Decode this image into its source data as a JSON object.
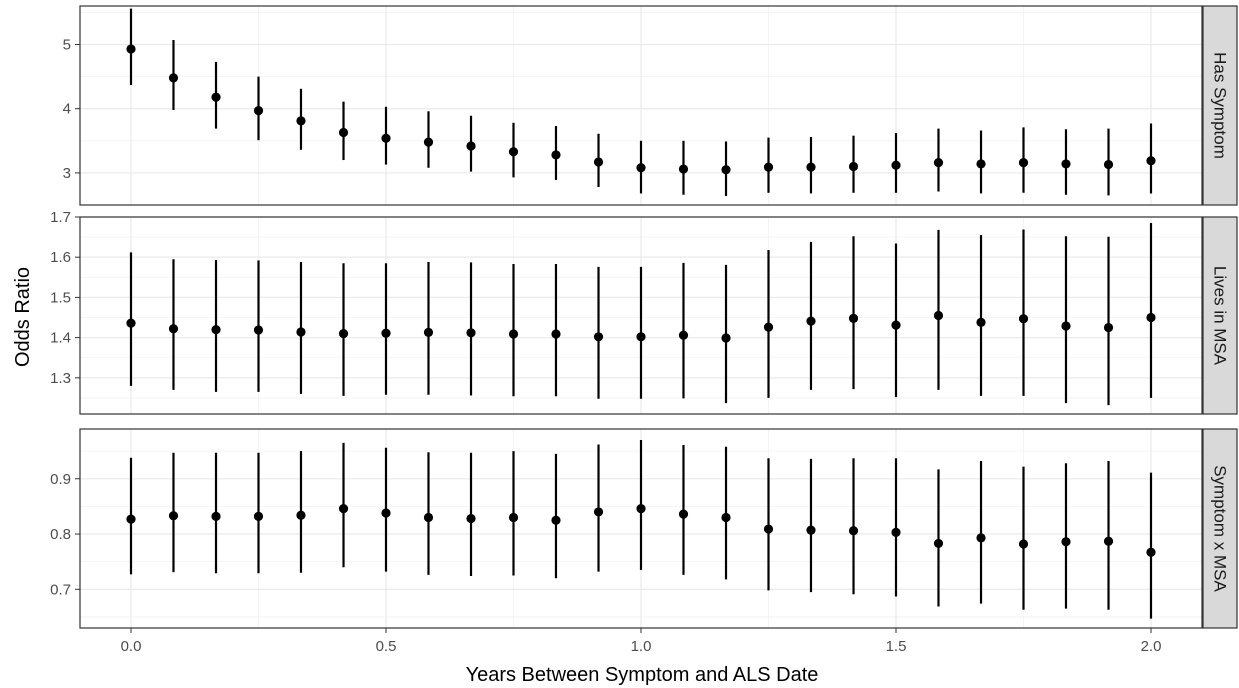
{
  "chart_data": {
    "type": "scatter",
    "subtype": "point-range faceted",
    "xlabel": "Years Between Symptom and ALS Date",
    "ylabel": "Odds Ratio",
    "xlim": [
      -0.1,
      2.1
    ],
    "x_ticks": [
      0.0,
      0.5,
      1.0,
      1.5,
      2.0
    ],
    "x_tick_labels": [
      "0.0",
      "0.5",
      "1.0",
      "1.5",
      "2.0"
    ],
    "x": [
      0,
      0.0833,
      0.1667,
      0.25,
      0.3333,
      0.4167,
      0.5,
      0.5833,
      0.6667,
      0.75,
      0.8333,
      0.9167,
      1.0,
      1.0833,
      1.1667,
      1.25,
      1.3333,
      1.4167,
      1.5,
      1.5833,
      1.6667,
      1.75,
      1.8333,
      1.9167,
      2.0
    ],
    "grid": true,
    "panels": [
      {
        "strip_label": "Has Symptom",
        "ylim": [
          2.5,
          5.6
        ],
        "y_ticks": [
          3,
          4,
          5
        ],
        "y_tick_labels": [
          "3",
          "4",
          "5"
        ],
        "estimate": [
          4.93,
          4.48,
          4.18,
          3.97,
          3.81,
          3.63,
          3.54,
          3.48,
          3.42,
          3.33,
          3.28,
          3.17,
          3.08,
          3.06,
          3.05,
          3.09,
          3.09,
          3.1,
          3.12,
          3.16,
          3.14,
          3.16,
          3.14,
          3.13,
          3.19
        ],
        "lower": [
          4.37,
          3.98,
          3.69,
          3.51,
          3.36,
          3.2,
          3.13,
          3.08,
          3.02,
          2.93,
          2.89,
          2.78,
          2.68,
          2.66,
          2.64,
          2.69,
          2.68,
          2.69,
          2.69,
          2.71,
          2.68,
          2.69,
          2.66,
          2.65,
          2.68
        ],
        "upper": [
          5.56,
          5.07,
          4.73,
          4.5,
          4.31,
          4.11,
          4.03,
          3.96,
          3.89,
          3.78,
          3.73,
          3.61,
          3.5,
          3.5,
          3.49,
          3.55,
          3.56,
          3.58,
          3.62,
          3.69,
          3.66,
          3.71,
          3.68,
          3.69,
          3.77
        ]
      },
      {
        "strip_label": "Lives in MSA",
        "ylim": [
          1.21,
          1.7
        ],
        "y_ticks": [
          1.3,
          1.4,
          1.5,
          1.6,
          1.7
        ],
        "y_tick_labels": [
          "1.3",
          "1.4",
          "1.5",
          "1.6",
          "1.7"
        ],
        "estimate": [
          1.436,
          1.422,
          1.42,
          1.419,
          1.414,
          1.41,
          1.411,
          1.413,
          1.412,
          1.409,
          1.409,
          1.402,
          1.402,
          1.406,
          1.399,
          1.426,
          1.441,
          1.448,
          1.431,
          1.455,
          1.438,
          1.447,
          1.429,
          1.425,
          1.45
        ],
        "lower": [
          1.28,
          1.27,
          1.265,
          1.265,
          1.26,
          1.255,
          1.258,
          1.258,
          1.256,
          1.254,
          1.254,
          1.248,
          1.248,
          1.249,
          1.237,
          1.25,
          1.27,
          1.272,
          1.252,
          1.27,
          1.255,
          1.255,
          1.237,
          1.232,
          1.25
        ],
        "upper": [
          1.612,
          1.595,
          1.593,
          1.592,
          1.588,
          1.585,
          1.585,
          1.588,
          1.587,
          1.583,
          1.583,
          1.576,
          1.576,
          1.586,
          1.581,
          1.618,
          1.638,
          1.652,
          1.634,
          1.668,
          1.655,
          1.669,
          1.652,
          1.651,
          1.685
        ]
      },
      {
        "strip_label": "Symptom x MSA",
        "ylim": [
          0.63,
          0.99
        ],
        "y_ticks": [
          0.7,
          0.8,
          0.9
        ],
        "y_tick_labels": [
          "0.7",
          "0.8",
          "0.9"
        ],
        "estimate": [
          0.827,
          0.833,
          0.832,
          0.832,
          0.834,
          0.846,
          0.838,
          0.83,
          0.828,
          0.83,
          0.825,
          0.84,
          0.846,
          0.836,
          0.83,
          0.809,
          0.807,
          0.806,
          0.803,
          0.783,
          0.793,
          0.782,
          0.786,
          0.787,
          0.767
        ],
        "lower": [
          0.727,
          0.731,
          0.729,
          0.729,
          0.73,
          0.74,
          0.732,
          0.726,
          0.724,
          0.725,
          0.72,
          0.732,
          0.735,
          0.726,
          0.718,
          0.698,
          0.695,
          0.691,
          0.687,
          0.669,
          0.674,
          0.663,
          0.665,
          0.663,
          0.647
        ],
        "upper": [
          0.938,
          0.947,
          0.947,
          0.947,
          0.95,
          0.965,
          0.956,
          0.948,
          0.947,
          0.95,
          0.945,
          0.962,
          0.97,
          0.961,
          0.958,
          0.937,
          0.936,
          0.937,
          0.937,
          0.917,
          0.932,
          0.922,
          0.928,
          0.932,
          0.911
        ]
      }
    ]
  }
}
